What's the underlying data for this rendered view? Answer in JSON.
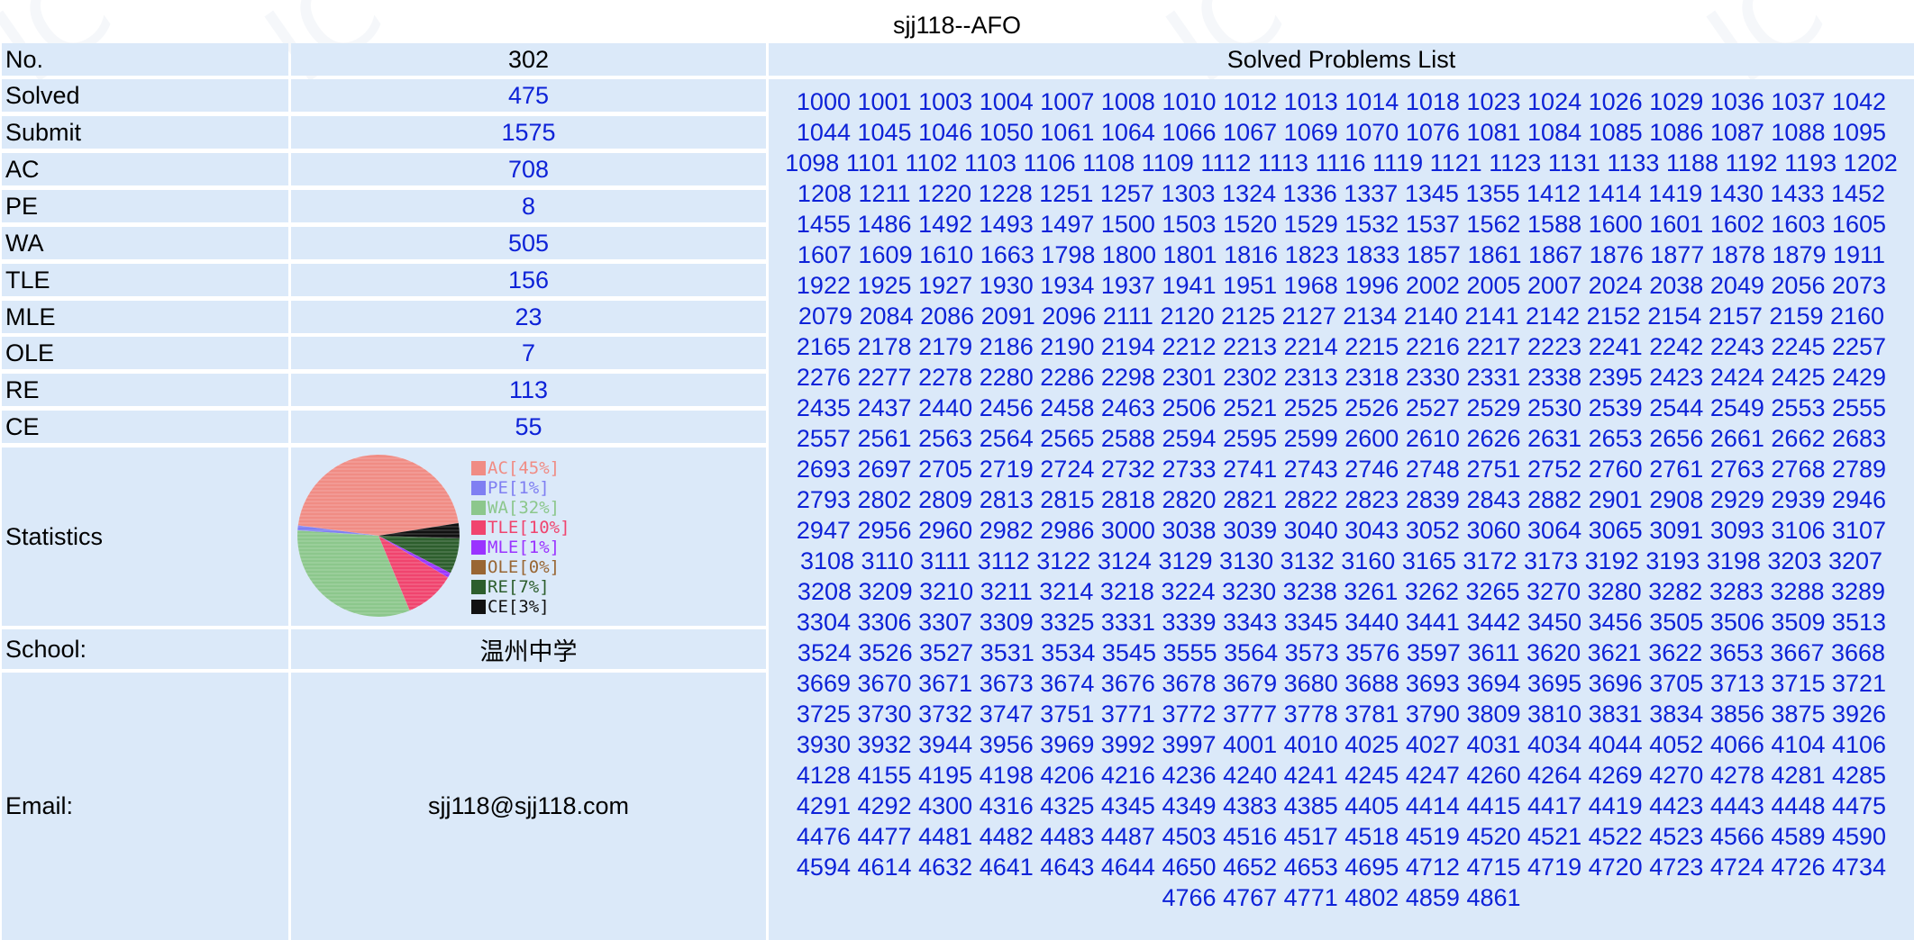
{
  "page_title": "sjj118--AFO",
  "stats": [
    {
      "key": "no",
      "label": "No.",
      "value": "302",
      "link": false
    },
    {
      "key": "solved",
      "label": "Solved",
      "value": "475",
      "link": true
    },
    {
      "key": "submit",
      "label": "Submit",
      "value": "1575",
      "link": true
    },
    {
      "key": "ac",
      "label": "AC",
      "value": "708",
      "link": true
    },
    {
      "key": "pe",
      "label": "PE",
      "value": "8",
      "link": true
    },
    {
      "key": "wa",
      "label": "WA",
      "value": "505",
      "link": true
    },
    {
      "key": "tle",
      "label": "TLE",
      "value": "156",
      "link": true
    },
    {
      "key": "mle",
      "label": "MLE",
      "value": "23",
      "link": true
    },
    {
      "key": "ole",
      "label": "OLE",
      "value": "7",
      "link": true
    },
    {
      "key": "re",
      "label": "RE",
      "value": "113",
      "link": true
    },
    {
      "key": "ce",
      "label": "CE",
      "value": "55",
      "link": true
    }
  ],
  "statistics_label": "Statistics",
  "school_label": "School:",
  "school_value": "温州中学",
  "email_label": "Email:",
  "email_value": "sjj118@sjj118.com",
  "solved_header": "Solved Problems List",
  "chart_data": {
    "type": "pie",
    "slices": [
      {
        "name": "AC[45%]",
        "value": 45,
        "color": "#f08c84"
      },
      {
        "name": "PE[1%]",
        "value": 1,
        "color": "#7f7ff2"
      },
      {
        "name": "WA[32%]",
        "value": 32,
        "color": "#8cc78c"
      },
      {
        "name": "TLE[10%]",
        "value": 10,
        "color": "#f0446e"
      },
      {
        "name": "MLE[1%]",
        "value": 1,
        "color": "#9a33ff"
      },
      {
        "name": "OLE[0%]",
        "value": 0,
        "color": "#996633"
      },
      {
        "name": "RE[7%]",
        "value": 7,
        "color": "#2d5e2d"
      },
      {
        "name": "CE[3%]",
        "value": 3,
        "color": "#111111"
      }
    ],
    "legend_position": "right"
  },
  "solved_problems": [
    1000,
    1001,
    1003,
    1004,
    1007,
    1008,
    1010,
    1012,
    1013,
    1014,
    1018,
    1023,
    1024,
    1026,
    1029,
    1036,
    1037,
    1042,
    1044,
    1045,
    1046,
    1050,
    1061,
    1064,
    1066,
    1067,
    1069,
    1070,
    1076,
    1081,
    1084,
    1085,
    1086,
    1087,
    1088,
    1095,
    1098,
    1101,
    1102,
    1103,
    1106,
    1108,
    1109,
    1112,
    1113,
    1116,
    1119,
    1121,
    1123,
    1131,
    1133,
    1188,
    1192,
    1193,
    1202,
    1208,
    1211,
    1220,
    1228,
    1251,
    1257,
    1303,
    1324,
    1336,
    1337,
    1345,
    1355,
    1412,
    1414,
    1419,
    1430,
    1433,
    1452,
    1455,
    1486,
    1492,
    1493,
    1497,
    1500,
    1503,
    1520,
    1529,
    1532,
    1537,
    1562,
    1588,
    1600,
    1601,
    1602,
    1603,
    1605,
    1607,
    1609,
    1610,
    1663,
    1798,
    1800,
    1801,
    1816,
    1823,
    1833,
    1857,
    1861,
    1867,
    1876,
    1877,
    1878,
    1879,
    1911,
    1922,
    1925,
    1927,
    1930,
    1934,
    1937,
    1941,
    1951,
    1968,
    1996,
    2002,
    2005,
    2007,
    2024,
    2038,
    2049,
    2056,
    2073,
    2079,
    2084,
    2086,
    2091,
    2096,
    2111,
    2120,
    2125,
    2127,
    2134,
    2140,
    2141,
    2142,
    2152,
    2154,
    2157,
    2159,
    2160,
    2165,
    2178,
    2179,
    2186,
    2190,
    2194,
    2212,
    2213,
    2214,
    2215,
    2216,
    2217,
    2223,
    2241,
    2242,
    2243,
    2245,
    2257,
    2276,
    2277,
    2278,
    2280,
    2286,
    2298,
    2301,
    2302,
    2313,
    2318,
    2330,
    2331,
    2338,
    2395,
    2423,
    2424,
    2425,
    2429,
    2435,
    2437,
    2440,
    2456,
    2458,
    2463,
    2506,
    2521,
    2525,
    2526,
    2527,
    2529,
    2530,
    2539,
    2544,
    2549,
    2553,
    2555,
    2557,
    2561,
    2563,
    2564,
    2565,
    2588,
    2594,
    2595,
    2599,
    2600,
    2610,
    2626,
    2631,
    2653,
    2656,
    2661,
    2662,
    2683,
    2693,
    2697,
    2705,
    2719,
    2724,
    2732,
    2733,
    2741,
    2743,
    2746,
    2748,
    2751,
    2752,
    2760,
    2761,
    2763,
    2768,
    2789,
    2793,
    2802,
    2809,
    2813,
    2815,
    2818,
    2820,
    2821,
    2822,
    2823,
    2839,
    2843,
    2882,
    2901,
    2908,
    2929,
    2939,
    2946,
    2947,
    2956,
    2960,
    2982,
    2986,
    3000,
    3038,
    3039,
    3040,
    3043,
    3052,
    3060,
    3064,
    3065,
    3091,
    3093,
    3106,
    3107,
    3108,
    3110,
    3111,
    3112,
    3122,
    3124,
    3129,
    3130,
    3132,
    3160,
    3165,
    3172,
    3173,
    3192,
    3193,
    3198,
    3203,
    3207,
    3208,
    3209,
    3210,
    3211,
    3214,
    3218,
    3224,
    3230,
    3238,
    3261,
    3262,
    3265,
    3270,
    3280,
    3282,
    3283,
    3288,
    3289,
    3304,
    3306,
    3307,
    3309,
    3325,
    3331,
    3339,
    3343,
    3345,
    3440,
    3441,
    3442,
    3450,
    3456,
    3505,
    3506,
    3509,
    3513,
    3524,
    3526,
    3527,
    3531,
    3534,
    3545,
    3555,
    3564,
    3573,
    3576,
    3597,
    3611,
    3620,
    3621,
    3622,
    3653,
    3667,
    3668,
    3669,
    3670,
    3671,
    3673,
    3674,
    3676,
    3678,
    3679,
    3680,
    3688,
    3693,
    3694,
    3695,
    3696,
    3705,
    3713,
    3715,
    3721,
    3725,
    3730,
    3732,
    3747,
    3751,
    3771,
    3772,
    3777,
    3778,
    3781,
    3790,
    3809,
    3810,
    3831,
    3834,
    3856,
    3875,
    3926,
    3930,
    3932,
    3944,
    3956,
    3969,
    3992,
    3997,
    4001,
    4010,
    4025,
    4027,
    4031,
    4034,
    4044,
    4052,
    4066,
    4104,
    4106,
    4128,
    4155,
    4195,
    4198,
    4206,
    4216,
    4236,
    4240,
    4241,
    4245,
    4247,
    4260,
    4264,
    4269,
    4270,
    4278,
    4281,
    4285,
    4291,
    4292,
    4300,
    4316,
    4325,
    4345,
    4349,
    4383,
    4385,
    4405,
    4414,
    4415,
    4417,
    4419,
    4423,
    4443,
    4448,
    4475,
    4476,
    4477,
    4481,
    4482,
    4483,
    4487,
    4503,
    4516,
    4517,
    4518,
    4519,
    4520,
    4521,
    4522,
    4523,
    4566,
    4589,
    4590,
    4594,
    4614,
    4632,
    4641,
    4643,
    4644,
    4650,
    4652,
    4653,
    4695,
    4712,
    4715,
    4719,
    4720,
    4723,
    4724,
    4726,
    4734,
    4766,
    4767,
    4771,
    4802,
    4859,
    4861
  ]
}
